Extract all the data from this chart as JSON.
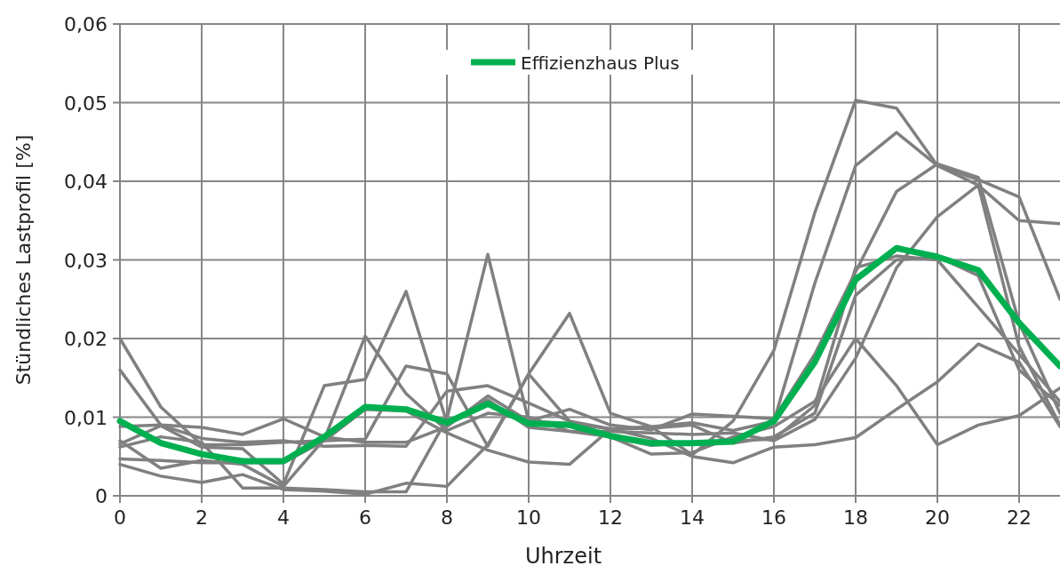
{
  "chart_data": {
    "type": "line",
    "xlabel": "Uhrzeit",
    "ylabel": "Stündliches Lastprofil  [%]",
    "x": [
      0,
      1,
      2,
      3,
      4,
      5,
      6,
      7,
      8,
      9,
      10,
      11,
      12,
      13,
      14,
      15,
      16,
      17,
      18,
      19,
      20,
      21,
      22,
      23
    ],
    "xlim": [
      0,
      23
    ],
    "xticks": [
      0,
      2,
      4,
      6,
      8,
      10,
      12,
      14,
      16,
      18,
      20,
      22
    ],
    "ylim": [
      0,
      0.06
    ],
    "yticks": [
      {
        "value": 0,
        "label": "0"
      },
      {
        "value": 0.01,
        "label": "0,01"
      },
      {
        "value": 0.02,
        "label": "0,02"
      },
      {
        "value": 0.03,
        "label": "0,03"
      },
      {
        "value": 0.04,
        "label": "0,04"
      },
      {
        "value": 0.05,
        "label": "0,05"
      },
      {
        "value": 0.06,
        "label": "0,06"
      }
    ],
    "grid": true,
    "legend": "top",
    "line_style": "solid",
    "marker": "none",
    "series": [
      {
        "color": "#808080",
        "values": [
          0.02,
          0.0113,
          0.0065,
          0.0065,
          0.0068,
          0.007,
          0.0072,
          0.0165,
          0.0155,
          0.0063,
          0.0155,
          0.0232,
          0.0105,
          0.0088,
          0.0052,
          0.0095,
          0.0185,
          0.036,
          0.0503,
          0.0493,
          0.042,
          0.0402,
          0.038,
          0.025
        ]
      },
      {
        "color": "#808080",
        "values": [
          0.016,
          0.009,
          0.0073,
          0.0068,
          0.007,
          0.0063,
          0.0064,
          0.0063,
          0.0133,
          0.014,
          0.0118,
          0.0095,
          0.0085,
          0.0088,
          0.0093,
          0.0083,
          0.0095,
          0.027,
          0.042,
          0.0462,
          0.042,
          0.0395,
          0.035,
          0.0346
        ]
      },
      {
        "color": "#808080",
        "values": [
          0.0088,
          0.009,
          0.0087,
          0.0078,
          0.0098,
          0.0075,
          0.0068,
          0.0068,
          0.0088,
          0.0127,
          0.0095,
          0.011,
          0.009,
          0.0084,
          0.0104,
          0.0101,
          0.0098,
          0.018,
          0.0285,
          0.0387,
          0.0422,
          0.0405,
          0.022,
          0.0105
        ]
      },
      {
        "color": "#808080",
        "values": [
          0.0066,
          0.0089,
          0.0062,
          0.006,
          0.0015,
          0.014,
          0.0148,
          0.026,
          0.0093,
          0.0122,
          0.0087,
          0.0082,
          0.0082,
          0.008,
          0.0078,
          0.008,
          0.007,
          0.0097,
          0.0175,
          0.029,
          0.0355,
          0.0395,
          0.019,
          0.009
        ]
      },
      {
        "color": "#808080",
        "values": [
          0.007,
          0.0035,
          0.0045,
          0.004,
          0.0012,
          0.0072,
          0.0203,
          0.013,
          0.0083,
          0.0105,
          0.01,
          0.0082,
          0.0075,
          0.0053,
          0.0055,
          0.0075,
          0.0088,
          0.012,
          0.02,
          0.014,
          0.0065,
          0.009,
          0.0102,
          0.0137
        ]
      },
      {
        "color": "#808080",
        "values": [
          0.0047,
          0.0045,
          0.0042,
          0.0042,
          0.0042,
          0.007,
          0.011,
          0.0108,
          0.008,
          0.0058,
          0.0043,
          0.004,
          0.0085,
          0.0073,
          0.005,
          0.0042,
          0.0062,
          0.0065,
          0.0074,
          0.011,
          0.0145,
          0.0193,
          0.017,
          0.0088
        ]
      },
      {
        "color": "#808080",
        "values": [
          0.004,
          0.0025,
          0.0017,
          0.0027,
          0.0008,
          0.0006,
          0.0002,
          0.0016,
          0.0012,
          0.0065,
          0.0155,
          0.0095,
          0.0075,
          0.0064,
          0.0068,
          0.007,
          0.0072,
          0.0115,
          0.029,
          0.0305,
          0.03,
          0.024,
          0.018,
          0.012
        ]
      },
      {
        "color": "#808080",
        "values": [
          0.0062,
          0.0075,
          0.0068,
          0.001,
          0.001,
          0.0008,
          0.0005,
          0.0005,
          0.0098,
          0.0307,
          0.0095,
          0.0092,
          0.0085,
          0.0086,
          0.009,
          0.0067,
          0.0075,
          0.0105,
          0.0255,
          0.03,
          0.0304,
          0.028,
          0.016,
          0.0115
        ]
      },
      {
        "name": "Effizienzhaus Plus",
        "color": "#00b050",
        "values": [
          0.0095,
          0.0067,
          0.0053,
          0.0044,
          0.0044,
          0.0075,
          0.0113,
          0.011,
          0.0093,
          0.0117,
          0.0092,
          0.009,
          0.0076,
          0.0067,
          0.0067,
          0.0069,
          0.0095,
          0.017,
          0.0275,
          0.0315,
          0.0304,
          0.0287,
          0.022,
          0.0165
        ]
      }
    ]
  }
}
